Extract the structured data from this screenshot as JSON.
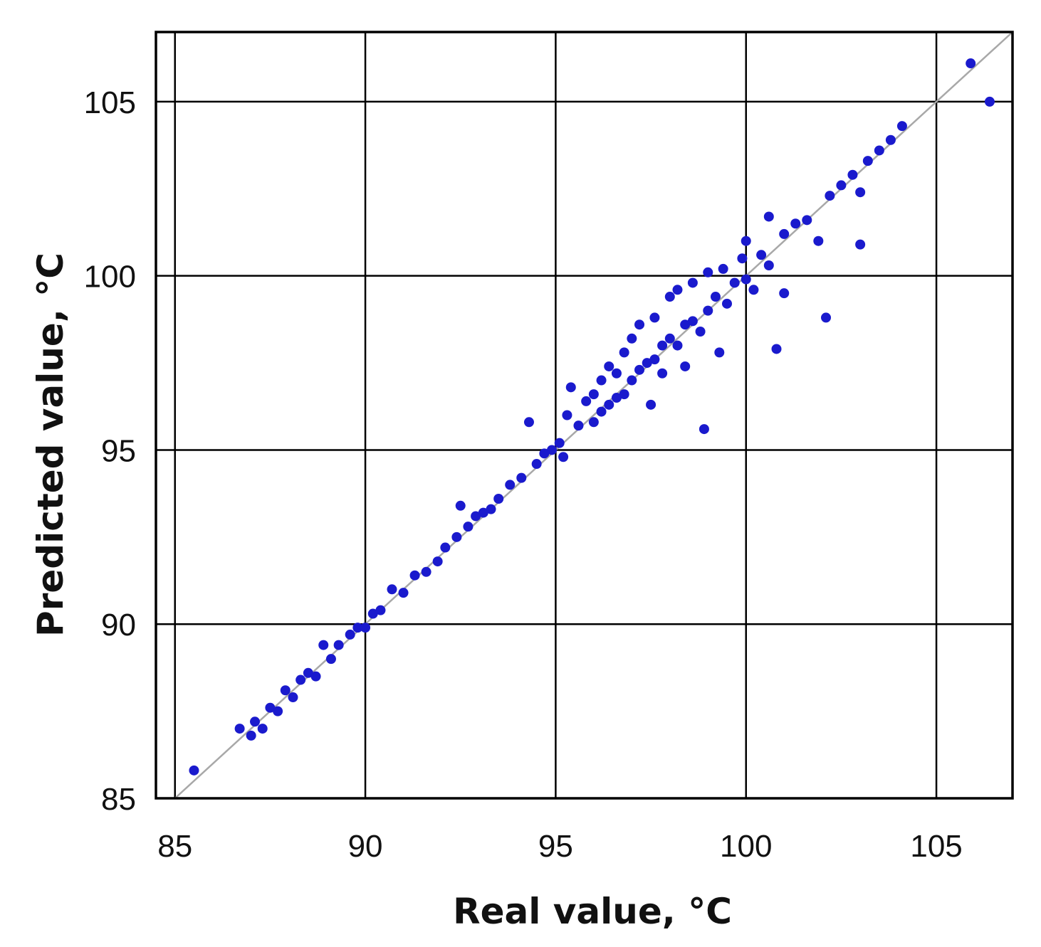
{
  "chart_data": {
    "type": "scatter",
    "xlabel": "Real value, °C",
    "ylabel": "Predicted value, °C",
    "xlim": [
      84.5,
      107
    ],
    "ylim": [
      85,
      107
    ],
    "xticks": [
      85,
      90,
      95,
      100,
      105
    ],
    "yticks": [
      85,
      90,
      95,
      100,
      105
    ],
    "xtick_labels": [
      "85",
      "90",
      "95",
      "100",
      "105"
    ],
    "ytick_labels": [
      "85",
      "90",
      "95",
      "100",
      "105"
    ],
    "grid": true,
    "reference_line": "y = x",
    "marker_color": "#1a1acd",
    "reference_line_color": "#a8a8a8",
    "series": [
      {
        "values": [
          [
            85.5,
            85.8
          ],
          [
            86.7,
            87.0
          ],
          [
            87.0,
            86.8
          ],
          [
            87.1,
            87.2
          ],
          [
            87.3,
            87.0
          ],
          [
            87.5,
            87.6
          ],
          [
            87.7,
            87.5
          ],
          [
            87.9,
            88.1
          ],
          [
            88.1,
            87.9
          ],
          [
            88.3,
            88.4
          ],
          [
            88.5,
            88.6
          ],
          [
            88.7,
            88.5
          ],
          [
            88.9,
            89.4
          ],
          [
            89.1,
            89.0
          ],
          [
            89.3,
            89.4
          ],
          [
            89.6,
            89.7
          ],
          [
            89.8,
            89.9
          ],
          [
            90.0,
            89.9
          ],
          [
            90.2,
            90.3
          ],
          [
            90.4,
            90.4
          ],
          [
            90.7,
            91.0
          ],
          [
            91.0,
            90.9
          ],
          [
            91.3,
            91.4
          ],
          [
            91.6,
            91.5
          ],
          [
            91.9,
            91.8
          ],
          [
            92.1,
            92.2
          ],
          [
            92.4,
            92.5
          ],
          [
            92.5,
            93.4
          ],
          [
            92.7,
            92.8
          ],
          [
            92.9,
            93.1
          ],
          [
            93.1,
            93.2
          ],
          [
            93.3,
            93.3
          ],
          [
            93.5,
            93.6
          ],
          [
            93.8,
            94.0
          ],
          [
            94.1,
            94.2
          ],
          [
            94.3,
            95.8
          ],
          [
            94.5,
            94.6
          ],
          [
            94.7,
            94.9
          ],
          [
            94.9,
            95.0
          ],
          [
            95.1,
            95.2
          ],
          [
            95.2,
            94.8
          ],
          [
            95.4,
            96.8
          ],
          [
            95.3,
            96.0
          ],
          [
            95.6,
            95.7
          ],
          [
            95.8,
            96.4
          ],
          [
            96.0,
            96.6
          ],
          [
            96.0,
            95.8
          ],
          [
            96.2,
            97.0
          ],
          [
            96.2,
            96.1
          ],
          [
            96.4,
            97.4
          ],
          [
            96.4,
            96.3
          ],
          [
            96.6,
            97.2
          ],
          [
            96.6,
            96.5
          ],
          [
            96.8,
            97.8
          ],
          [
            96.8,
            96.6
          ],
          [
            97.0,
            98.2
          ],
          [
            97.0,
            97.0
          ],
          [
            97.2,
            98.6
          ],
          [
            97.2,
            97.3
          ],
          [
            97.4,
            97.5
          ],
          [
            97.5,
            96.3
          ],
          [
            97.6,
            98.8
          ],
          [
            97.6,
            97.6
          ],
          [
            97.8,
            98.0
          ],
          [
            97.8,
            97.2
          ],
          [
            98.0,
            99.4
          ],
          [
            98.0,
            98.2
          ],
          [
            98.2,
            99.6
          ],
          [
            98.2,
            98.0
          ],
          [
            98.4,
            98.6
          ],
          [
            98.4,
            97.4
          ],
          [
            98.6,
            99.8
          ],
          [
            98.6,
            98.7
          ],
          [
            98.8,
            98.4
          ],
          [
            98.9,
            95.6
          ],
          [
            99.0,
            100.1
          ],
          [
            99.0,
            99.0
          ],
          [
            99.2,
            99.4
          ],
          [
            99.3,
            97.8
          ],
          [
            99.4,
            100.2
          ],
          [
            99.5,
            99.2
          ],
          [
            99.7,
            99.8
          ],
          [
            99.9,
            100.5
          ],
          [
            100.0,
            101.0
          ],
          [
            100.0,
            99.9
          ],
          [
            100.2,
            99.6
          ],
          [
            100.4,
            100.6
          ],
          [
            100.6,
            101.7
          ],
          [
            100.6,
            100.3
          ],
          [
            100.8,
            97.9
          ],
          [
            101.0,
            101.2
          ],
          [
            101.0,
            99.5
          ],
          [
            101.3,
            101.5
          ],
          [
            101.6,
            101.6
          ],
          [
            101.9,
            101.0
          ],
          [
            102.1,
            98.8
          ],
          [
            102.2,
            102.3
          ],
          [
            102.5,
            102.6
          ],
          [
            102.8,
            102.9
          ],
          [
            103.0,
            102.4
          ],
          [
            103.0,
            100.9
          ],
          [
            103.2,
            103.3
          ],
          [
            103.5,
            103.6
          ],
          [
            103.8,
            103.9
          ],
          [
            104.1,
            104.3
          ],
          [
            105.9,
            106.1
          ],
          [
            106.4,
            105.0
          ]
        ]
      }
    ]
  }
}
